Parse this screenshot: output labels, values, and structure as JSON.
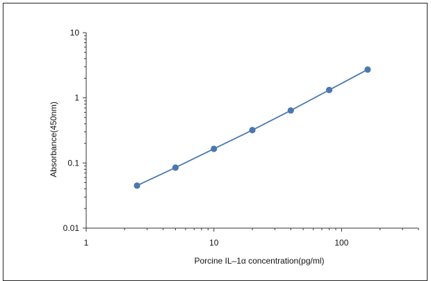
{
  "chart_data": {
    "type": "scatter",
    "title": "",
    "xlabel": "Porcine IL–1α  concentration(pg/ml)",
    "ylabel": "Absorbance(450nm)",
    "x_scale": "log",
    "y_scale": "log",
    "xlim": [
      1,
      400
    ],
    "ylim": [
      0.01,
      10
    ],
    "x_tick_labels": [
      "1",
      "10",
      "100"
    ],
    "y_tick_labels": [
      "10",
      "1",
      "0.1",
      "0.01"
    ],
    "grid": false,
    "legend": "none",
    "series": [
      {
        "x": [
          2.5,
          5,
          10,
          20,
          40,
          80,
          160
        ],
        "y": [
          0.045,
          0.085,
          0.165,
          0.32,
          0.64,
          1.32,
          2.72
        ],
        "color": "#4a78b0",
        "line": true,
        "markers": true
      }
    ]
  }
}
